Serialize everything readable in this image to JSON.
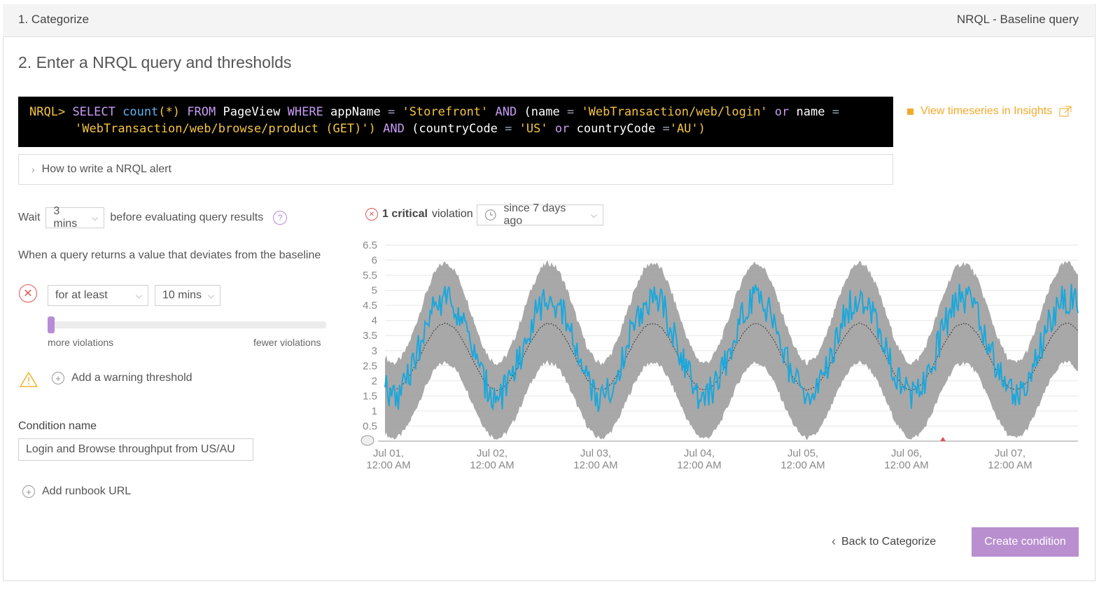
{
  "header": {
    "step1": "1. Categorize",
    "type": "NRQL - Baseline query"
  },
  "step2_title": "2. Enter a NRQL query and thresholds",
  "query": {
    "prompt": "NRQL>",
    "select": "SELECT",
    "count": "count",
    "star": "(*)",
    "from": "FROM",
    "table": "PageView",
    "where": "WHERE",
    "appname": "appName",
    "eq": "=",
    "app_value": "'Storefront'",
    "and": "AND",
    "name_open": "(name",
    "login_path": "'WebTransaction/web/login'",
    "or": "or",
    "name": "name",
    "product_path": "'WebTransaction/web/browse/product (GET)')",
    "country_open": "(countryCode",
    "us": "'US'",
    "country": "countryCode",
    "eq_au": "=",
    "au": "'AU')"
  },
  "insights_link": "View timeseries in Insights",
  "howto": "How to write a NRQL alert",
  "wait": {
    "label": "Wait",
    "value": "3 mins",
    "suffix": "before evaluating query results",
    "help": "?"
  },
  "deviates": "When a query returns a value that deviates from the baseline",
  "critical": {
    "duration_mode": "for at least",
    "duration": "10 mins",
    "sensitivity": 0.02
  },
  "slider": {
    "left_label": "more violations",
    "right_label": "fewer violations"
  },
  "add_warning": "Add a warning threshold",
  "condition": {
    "label": "Condition name",
    "value": "Login and Browse throughput from US/AU"
  },
  "add_runbook": "Add runbook URL",
  "violations": {
    "count": "1",
    "severity": "critical",
    "word": "violation",
    "range": "since 7 days ago"
  },
  "buttons": {
    "back": "Back to Categorize",
    "create": "Create condition"
  },
  "colors": {
    "accent": "#b98fd0",
    "series": "#1ba7dc",
    "band": "#9e9e9e",
    "insights": "#f0a92a",
    "critical": "#e05555",
    "warning": "#f0b429"
  },
  "chart_data": {
    "type": "area",
    "title": "",
    "xlabel": "",
    "ylabel": "",
    "ylim": [
      0,
      6.5
    ],
    "yticks": [
      "6.5",
      "6",
      "5.5",
      "5",
      "4.5",
      "4",
      "3.5",
      "3",
      "2.5",
      "2",
      "1.5",
      "1",
      "0.5"
    ],
    "xticks": [
      {
        "line1": "Jul 01,",
        "line2": "12:00 AM"
      },
      {
        "line1": "Jul 02,",
        "line2": "12:00 AM"
      },
      {
        "line1": "Jul 03,",
        "line2": "12:00 AM"
      },
      {
        "line1": "Jul 04,",
        "line2": "12:00 AM"
      },
      {
        "line1": "Jul 05,",
        "line2": "12:00 AM"
      },
      {
        "line1": "Jul 06,",
        "line2": "12:00 AM"
      },
      {
        "line1": "Jul 07,",
        "line2": "12:00 AM"
      }
    ],
    "grid": true,
    "period_days": 1,
    "series": [
      {
        "role": "upper band",
        "peak": 5.9,
        "trough": 2.6
      },
      {
        "role": "lower band",
        "peak": 2.6,
        "trough": 0.1
      },
      {
        "role": "baseline",
        "peak": 3.9,
        "trough": 1.7
      },
      {
        "role": "actual",
        "peak": 5.3,
        "trough": 1.5
      }
    ],
    "violation_markers": [
      "Jul 06"
    ]
  }
}
